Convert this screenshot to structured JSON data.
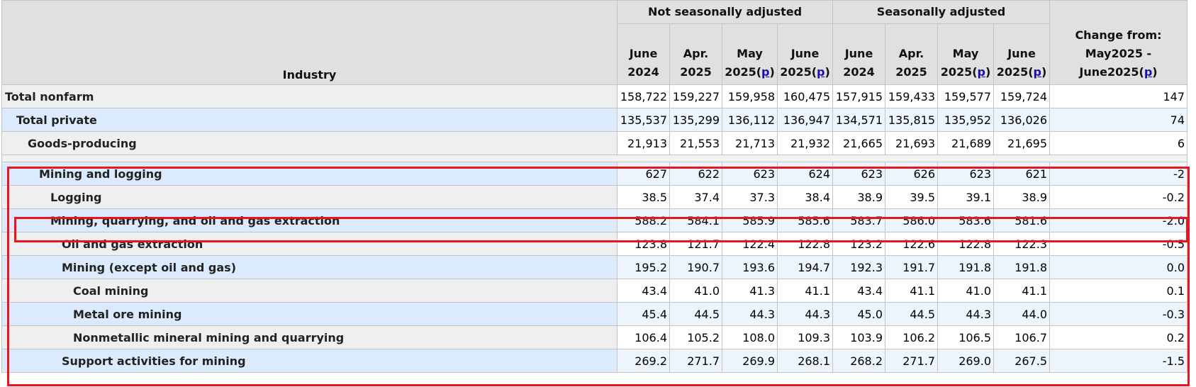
{
  "header": {
    "industry": "Industry",
    "group_nsa": "Not seasonally adjusted",
    "group_sa": "Seasonally adjusted",
    "columns": [
      {
        "line1": "June",
        "line2": "2024",
        "p": ""
      },
      {
        "line1": "Apr.",
        "line2": "2025",
        "p": ""
      },
      {
        "line1": "May",
        "line2": "2025(",
        "p": "p"
      },
      {
        "line1": "June",
        "line2": "2025(",
        "p": "p"
      },
      {
        "line1": "June",
        "line2": "2024",
        "p": ""
      },
      {
        "line1": "Apr.",
        "line2": "2025",
        "p": ""
      },
      {
        "line1": "May",
        "line2": "2025(",
        "p": "p"
      },
      {
        "line1": "June",
        "line2": "2025(",
        "p": "p"
      }
    ],
    "change": {
      "line1": "Change from:",
      "line2": "May2025 -",
      "line3": "June2025(",
      "p": "p"
    }
  },
  "rows": [
    {
      "name": "Total nonfarm",
      "level": 0,
      "values": [
        "158,722",
        "159,227",
        "159,958",
        "160,475",
        "157,915",
        "159,433",
        "159,577",
        "159,724"
      ],
      "change": "147"
    },
    {
      "name": "Total private",
      "level": 1,
      "values": [
        "135,537",
        "135,299",
        "136,112",
        "136,947",
        "134,571",
        "135,815",
        "135,952",
        "136,026"
      ],
      "change": "74"
    },
    {
      "name": "Goods-producing",
      "level": 2,
      "values": [
        "21,913",
        "21,553",
        "21,713",
        "21,932",
        "21,665",
        "21,693",
        "21,689",
        "21,695"
      ],
      "change": "6"
    },
    {
      "name": "Mining and logging",
      "level": 3,
      "values": [
        "627",
        "622",
        "623",
        "624",
        "623",
        "626",
        "623",
        "621"
      ],
      "change": "-2"
    },
    {
      "name": "Logging",
      "level": 4,
      "values": [
        "38.5",
        "37.4",
        "37.3",
        "38.4",
        "38.9",
        "39.5",
        "39.1",
        "38.9"
      ],
      "change": "-0.2"
    },
    {
      "name": "Mining, quarrying, and oil and gas extraction",
      "level": 4,
      "values": [
        "588.2",
        "584.1",
        "585.9",
        "585.6",
        "583.7",
        "586.0",
        "583.6",
        "581.6"
      ],
      "change": "-2.0"
    },
    {
      "name": "Oil and gas extraction",
      "level": 5,
      "values": [
        "123.8",
        "121.7",
        "122.4",
        "122.8",
        "123.2",
        "122.6",
        "122.8",
        "122.3"
      ],
      "change": "-0.5"
    },
    {
      "name": "Mining (except oil and gas)",
      "level": 5,
      "values": [
        "195.2",
        "190.7",
        "193.6",
        "194.7",
        "192.3",
        "191.7",
        "191.8",
        "191.8"
      ],
      "change": "0.0"
    },
    {
      "name": "Coal mining",
      "level": 6,
      "values": [
        "43.4",
        "41.0",
        "41.3",
        "41.1",
        "43.4",
        "41.1",
        "41.0",
        "41.1"
      ],
      "change": "0.1"
    },
    {
      "name": "Metal ore mining",
      "level": 6,
      "values": [
        "45.4",
        "44.5",
        "44.3",
        "44.3",
        "45.0",
        "44.5",
        "44.3",
        "44.0"
      ],
      "change": "-0.3"
    },
    {
      "name": "Nonmetallic mineral mining and quarrying",
      "level": 6,
      "values": [
        "106.4",
        "105.2",
        "108.0",
        "109.3",
        "103.9",
        "106.2",
        "106.5",
        "106.7"
      ],
      "change": "0.2"
    },
    {
      "name": "Support activities for mining",
      "level": 5,
      "values": [
        "269.2",
        "271.7",
        "269.9",
        "268.1",
        "268.2",
        "271.7",
        "269.0",
        "267.5"
      ],
      "change": "-1.5"
    }
  ],
  "highlight_color": "#e8141e"
}
